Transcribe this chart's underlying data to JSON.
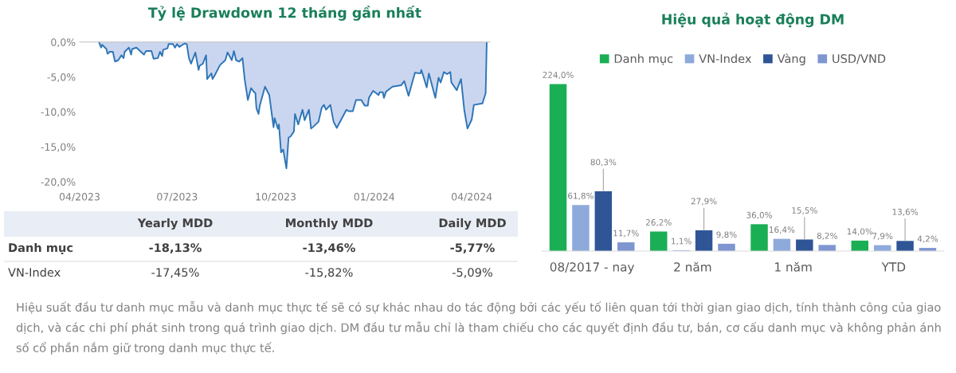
{
  "chart_data": [
    {
      "type": "area",
      "title": "Tỷ lệ Drawdown 12 tháng gần nhất",
      "x": [
        "2023-04-19",
        "2023-04-21",
        "2023-04-22",
        "2023-04-26",
        "2023-04-27",
        "2023-04-29",
        "2023-05-02",
        "2023-05-04",
        "2023-05-07",
        "2023-05-10",
        "2023-05-12",
        "2023-05-13",
        "2023-05-17",
        "2023-05-19",
        "2023-05-20",
        "2023-05-24",
        "2023-05-31",
        "2023-06-02",
        "2023-06-07",
        "2023-06-09",
        "2023-06-13",
        "2023-06-15",
        "2023-06-17",
        "2023-06-18",
        "2023-06-22",
        "2023-06-23",
        "2023-06-27",
        "2023-06-29",
        "2023-07-01",
        "2023-07-03",
        "2023-07-08",
        "2023-07-10",
        "2023-07-12",
        "2023-07-14",
        "2023-07-18",
        "2023-07-21",
        "2023-07-22",
        "2023-07-25",
        "2023-07-28",
        "2023-07-29",
        "2023-08-02",
        "2023-08-03",
        "2023-08-05",
        "2023-08-10",
        "2023-08-15",
        "2023-08-17",
        "2023-08-21",
        "2023-08-23",
        "2023-08-25",
        "2023-08-28",
        "2023-08-31",
        "2023-09-02",
        "2023-09-05",
        "2023-09-08",
        "2023-09-11",
        "2023-09-12",
        "2023-09-13",
        "2023-09-15",
        "2023-09-16",
        "2023-09-21",
        "2023-09-25",
        "2023-09-29",
        "2023-09-30",
        "2023-10-03",
        "2023-10-04",
        "2023-10-06",
        "2023-10-08",
        "2023-10-11",
        "2023-10-13",
        "2023-10-15",
        "2023-10-18",
        "2023-10-19",
        "2023-10-22",
        "2023-10-26",
        "2023-10-28",
        "2023-11-01",
        "2023-11-03",
        "2023-11-06",
        "2023-11-10",
        "2023-11-13",
        "2023-11-15",
        "2023-11-17",
        "2023-11-21",
        "2023-11-24",
        "2023-11-27",
        "2023-12-06",
        "2023-12-08",
        "2023-12-12",
        "2023-12-15",
        "2023-12-20",
        "2023-12-23",
        "2023-12-26",
        "2023-12-27",
        "2023-12-31",
        "2024-01-05",
        "2024-01-06",
        "2024-01-09",
        "2024-01-10",
        "2024-01-12",
        "2024-01-18",
        "2024-01-26",
        "2024-01-29",
        "2024-02-02",
        "2024-02-08",
        "2024-02-13",
        "2024-02-14",
        "2024-02-16",
        "2024-02-19",
        "2024-02-21",
        "2024-02-27",
        "2024-03-01",
        "2024-03-03",
        "2024-03-06",
        "2024-03-09",
        "2024-03-12",
        "2024-03-13",
        "2024-03-18",
        "2024-03-20",
        "2024-03-22",
        "2024-03-25",
        "2024-03-28",
        "2024-04-01",
        "2024-04-03",
        "2024-04-11",
        "2024-04-14",
        "2024-04-15"
      ],
      "series": [
        {
          "color": "#2e75b6",
          "values": [
            0,
            -0.8,
            -0.4,
            -1.0,
            -1.7,
            -1.4,
            -1.4,
            -2.8,
            -2.6,
            -1.9,
            -2.3,
            -1.4,
            -0.8,
            -1.8,
            -1.0,
            -0.8,
            -1.8,
            -1.3,
            -1.3,
            -2.4,
            -2.3,
            -1.4,
            -2.0,
            -1.1,
            -0.9,
            -0.3,
            -0.3,
            -0.8,
            -0.3,
            -0.7,
            -0.2,
            -0.3,
            -2.3,
            -3.1,
            -1.5,
            -4.0,
            -3.4,
            -3.1,
            -1.9,
            -5.3,
            -4.5,
            -5.3,
            -4.8,
            -3.3,
            -2.6,
            -1.5,
            -2.6,
            -1.3,
            -2.6,
            -2.8,
            -2.3,
            -5.3,
            -8.3,
            -6.6,
            -7.2,
            -7.3,
            -9.5,
            -10.3,
            -9.2,
            -6.4,
            -7.6,
            -12.2,
            -10.9,
            -12.4,
            -11.8,
            -15.8,
            -15.4,
            -18.1,
            -13.7,
            -13.5,
            -12.8,
            -10.3,
            -11.8,
            -9.7,
            -11.2,
            -9.7,
            -12.4,
            -12.0,
            -11.4,
            -9.4,
            -9.0,
            -9.7,
            -9.0,
            -11.4,
            -12.3,
            -9.7,
            -9.9,
            -9.9,
            -8.3,
            -8.3,
            -9.1,
            -9.1,
            -8.0,
            -7.0,
            -7.6,
            -7.2,
            -7.2,
            -8.0,
            -7.1,
            -6.4,
            -6.2,
            -5.6,
            -7.7,
            -4.4,
            -4.5,
            -4.0,
            -5.0,
            -6.5,
            -4.5,
            -8.0,
            -5.1,
            -5.8,
            -4.3,
            -4.6,
            -4.3,
            -5.8,
            -6.9,
            -6.1,
            -5.3,
            -9.7,
            -12.4,
            -11.1,
            -9.0,
            -8.8,
            -7.3,
            0
          ]
        }
      ],
      "xlim": [
        "2023-04-01",
        "2024-04-18"
      ],
      "xticks": [
        {
          "value": "2023-04-01",
          "label": "04/2023"
        },
        {
          "value": "2023-07-01",
          "label": "07/2023"
        },
        {
          "value": "2023-10-01",
          "label": "10/2023"
        },
        {
          "value": "2024-01-01",
          "label": "01/2024"
        },
        {
          "value": "2024-04-01",
          "label": "04/2024"
        }
      ],
      "ylim": [
        -20,
        0
      ],
      "yticks": [
        {
          "value": 0,
          "label": "0,0%"
        },
        {
          "value": -5,
          "label": "-5,0%"
        },
        {
          "value": -10,
          "label": "-10,0%"
        },
        {
          "value": -15,
          "label": "-15,0%"
        },
        {
          "value": -20,
          "label": "-20,0%"
        }
      ],
      "grid": false,
      "legend": false
    },
    {
      "type": "other",
      "categories": [
        "Yearly MDD",
        "Monthly MDD",
        "Daily MDD"
      ],
      "y_categories": [
        "Danh mục",
        "VN-Index"
      ],
      "cell_labels": [
        [
          "-18,13%",
          "-13,46%",
          "-5,77%"
        ],
        [
          "-17,45%",
          "-15,82%",
          "-5,09%"
        ]
      ]
    },
    {
      "type": "bar",
      "title": "Hiệu quả hoạt động DM",
      "categories": [
        "08/2017 - nay",
        "2 năm",
        "1 năm",
        "YTD"
      ],
      "series": [
        {
          "name": "Danh mục",
          "color": "#1aaf54",
          "values": [
            224.0,
            26.2,
            36.0,
            14.0
          ],
          "value_labels": [
            "224,0%",
            "26,2%",
            "36,0%",
            "14,0%"
          ]
        },
        {
          "name": "VN-Index",
          "color": "#8eaadb",
          "values": [
            61.8,
            1.1,
            16.4,
            7.9
          ],
          "value_labels": [
            "61,8%",
            "1,1%",
            "16,4%",
            "7,9%"
          ]
        },
        {
          "name": "Vàng",
          "color": "#2f5597",
          "values": [
            80.3,
            27.9,
            15.5,
            13.6
          ],
          "value_labels": [
            "80,3%",
            "27,9%",
            "15,5%",
            "13,6%"
          ]
        },
        {
          "name": "USD/VND",
          "color": "#7f96d1",
          "values": [
            11.7,
            9.8,
            8.2,
            4.2
          ],
          "value_labels": [
            "11,7%",
            "9,8%",
            "8,2%",
            "4,2%"
          ]
        }
      ],
      "legend": "top",
      "grid": false
    },
    {
      "type": "other",
      "annotations": [
        "Hiệu suất đầu tư danh mục mẫu và danh mục thực tế sẽ có sự khác nhau do tác động bởi các yếu tố liên quan tới thời gian giao dịch, tính thành công của giao dịch, và các chi phí phát sinh trong quá trình giao dịch. DM đầu tư mẫu chỉ là tham chiếu cho các quyết định đầu tư, bán, cơ cấu danh mục và không phản ánh số cổ phần nắm giữ trong danh mục thực tế."
      ]
    }
  ]
}
